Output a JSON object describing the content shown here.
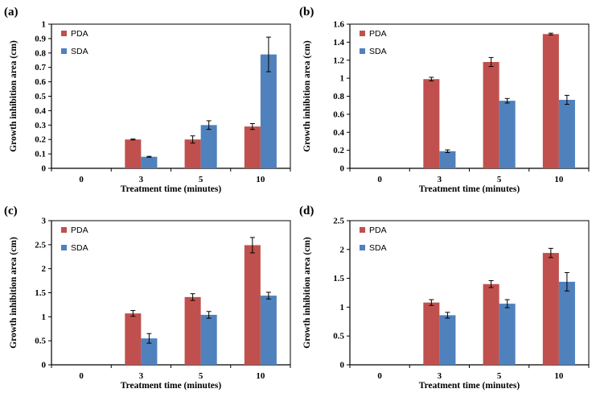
{
  "colors": {
    "PDA": "#c0504d",
    "SDA": "#4f81bd",
    "axis": "#000000",
    "error": "#000000"
  },
  "chart_data": [
    {
      "type": "bar",
      "panel": "(a)",
      "categories": [
        "0",
        "3",
        "5",
        "10"
      ],
      "series": [
        {
          "name": "PDA",
          "values": [
            0,
            0.2,
            0.2,
            0.29
          ],
          "errors": [
            0,
            0.003,
            0.025,
            0.02
          ]
        },
        {
          "name": "SDA",
          "values": [
            0,
            0.08,
            0.3,
            0.79
          ],
          "errors": [
            0,
            0.003,
            0.03,
            0.12
          ]
        }
      ],
      "xlabel": "Treatment time (minutes)",
      "ylabel": "Growth inhibition area (cm)",
      "ylim": [
        0,
        1
      ],
      "yticks": [
        0,
        0.1,
        0.2,
        0.3,
        0.4,
        0.5,
        0.6,
        0.7,
        0.8,
        0.9,
        1
      ],
      "ytick_labels": [
        "0",
        "0.1",
        "0.2",
        "0.3",
        "0.4",
        "0.5",
        "0.6",
        "0.7",
        "0.8",
        "0.9",
        "1"
      ],
      "legend": "top-left",
      "grid": false
    },
    {
      "type": "bar",
      "panel": "(b)",
      "categories": [
        "0",
        "3",
        "5",
        "10"
      ],
      "series": [
        {
          "name": "PDA",
          "values": [
            0,
            0.99,
            1.18,
            1.49
          ],
          "errors": [
            0,
            0.02,
            0.05,
            0.01
          ]
        },
        {
          "name": "SDA",
          "values": [
            0,
            0.19,
            0.75,
            0.76
          ],
          "errors": [
            0,
            0.015,
            0.025,
            0.05
          ]
        }
      ],
      "xlabel": "Treatment time (minutes)",
      "ylabel": "Growth inhibition area (cm)",
      "ylim": [
        0,
        1.6
      ],
      "yticks": [
        0,
        0.2,
        0.4,
        0.6,
        0.8,
        1,
        1.2,
        1.4,
        1.6
      ],
      "ytick_labels": [
        "0",
        "0.2",
        "0.4",
        "0.6",
        "0.8",
        "1",
        "1.2",
        "1.4",
        "1.6"
      ],
      "legend": "top-left",
      "grid": false
    },
    {
      "type": "bar",
      "panel": "(c)",
      "categories": [
        "0",
        "3",
        "5",
        "10"
      ],
      "series": [
        {
          "name": "PDA",
          "values": [
            0,
            1.07,
            1.41,
            2.49
          ],
          "errors": [
            0,
            0.06,
            0.07,
            0.16
          ]
        },
        {
          "name": "SDA",
          "values": [
            0,
            0.55,
            1.04,
            1.44
          ],
          "errors": [
            0,
            0.1,
            0.07,
            0.07
          ]
        }
      ],
      "xlabel": "Treatment time (minutes)",
      "ylabel": "Growth inhibition area (cm)",
      "ylim": [
        0,
        3
      ],
      "yticks": [
        0,
        0.5,
        1,
        1.5,
        2,
        2.5,
        3
      ],
      "ytick_labels": [
        "0",
        "0.5",
        "1",
        "1.5",
        "2",
        "2.5",
        "3"
      ],
      "legend": "top-left",
      "grid": false
    },
    {
      "type": "bar",
      "panel": "(d)",
      "categories": [
        "0",
        "3",
        "5",
        "10"
      ],
      "series": [
        {
          "name": "PDA",
          "values": [
            0,
            1.08,
            1.4,
            1.94
          ],
          "errors": [
            0,
            0.05,
            0.06,
            0.08
          ]
        },
        {
          "name": "SDA",
          "values": [
            0,
            0.86,
            1.06,
            1.44
          ],
          "errors": [
            0,
            0.05,
            0.07,
            0.16
          ]
        }
      ],
      "xlabel": "Treatment time (minutes)",
      "ylabel": "Growth inhibition area (cm)",
      "ylim": [
        0,
        2.5
      ],
      "yticks": [
        0,
        0.5,
        1,
        1.5,
        2,
        2.5
      ],
      "ytick_labels": [
        "0",
        "0.5",
        "1",
        "1.5",
        "2",
        "2.5"
      ],
      "legend": "top-left",
      "grid": false
    }
  ]
}
